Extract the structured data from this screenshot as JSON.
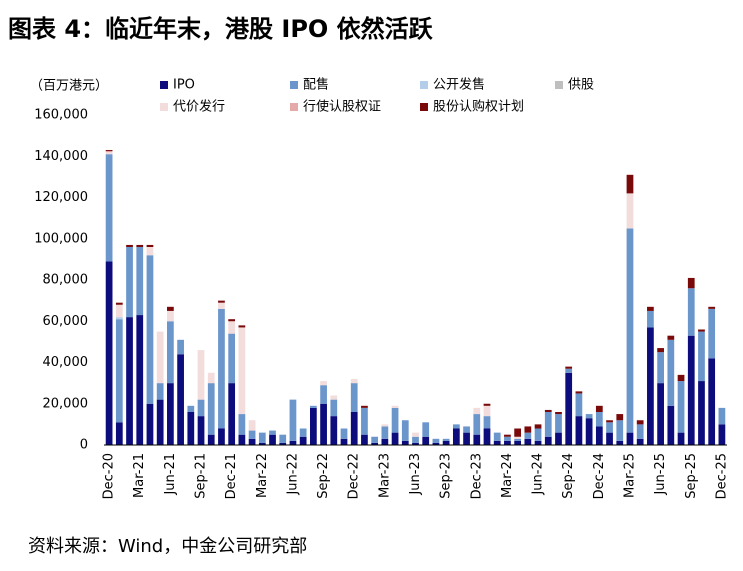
{
  "chart_data": {
    "type": "stacked_bar",
    "title": "图表 4：临近年末，港股 IPO 依然活跃",
    "y_label": "（百万港元）",
    "source": "资料来源：Wind，中金公司研究部",
    "categories": [
      "Dec-20",
      null,
      null,
      "Mar-21",
      null,
      null,
      "Jun-21",
      null,
      null,
      "Sep-21",
      null,
      null,
      "Dec-21",
      null,
      null,
      "Mar-22",
      null,
      null,
      "Jun-22",
      null,
      null,
      "Sep-22",
      null,
      null,
      "Dec-22",
      null,
      null,
      "Mar-23",
      null,
      null,
      "Jun-23",
      null,
      null,
      "Sep-23",
      null,
      null,
      "Dec-23",
      null,
      null,
      "Mar-24",
      null,
      null,
      "Jun-24",
      null,
      null,
      "Sep-24",
      null,
      null,
      "Dec-24",
      null,
      null,
      "Mar-25",
      null,
      null,
      "Jun-25",
      null,
      null,
      "Sep-25",
      null,
      null,
      "Dec-25"
    ],
    "series": [
      {
        "name": "IPO",
        "color": "#0c0c7c",
        "values": [
          89000,
          11000,
          62000,
          63000,
          20000,
          22000,
          30000,
          44000,
          16000,
          14000,
          5000,
          8000,
          30000,
          5000,
          3000,
          1000,
          5000,
          1000,
          2000,
          4000,
          18000,
          20000,
          14000,
          3000,
          16000,
          5000,
          1000,
          3000,
          6000,
          2000,
          1000,
          4000,
          1000,
          2000,
          8000,
          6000,
          5000,
          8000,
          2000,
          2000,
          2000,
          3000,
          2000,
          4000,
          6000,
          35000,
          14000,
          13000,
          9000,
          6000,
          2000,
          6000,
          3000,
          57000,
          30000,
          19000,
          6000,
          53000,
          31000,
          42000,
          10000
        ]
      },
      {
        "name": "配售",
        "color": "#6b96cc",
        "values": [
          52000,
          50000,
          34000,
          33000,
          72000,
          8000,
          30000,
          7000,
          3000,
          8000,
          25000,
          58000,
          24000,
          10000,
          4000,
          5000,
          2000,
          4000,
          20000,
          4000,
          1000,
          9000,
          8000,
          5000,
          14000,
          13000,
          3000,
          6000,
          12000,
          10000,
          3000,
          7000,
          2000,
          1000,
          2000,
          3000,
          10000,
          6000,
          4000,
          2000,
          1000,
          3000,
          6000,
          12000,
          9000,
          2000,
          11000,
          2000,
          7000,
          5000,
          10000,
          99000,
          7000,
          8000,
          15000,
          32000,
          25000,
          23000,
          24000,
          24000,
          8000
        ]
      },
      {
        "name": "公开发售",
        "color": "#b4cde9",
        "values": [
          0,
          1000,
          0,
          0,
          0,
          0,
          0,
          0,
          0,
          0,
          0,
          0,
          0,
          0,
          0,
          0,
          0,
          0,
          0,
          0,
          0,
          0,
          0,
          0,
          0,
          0,
          0,
          0,
          0,
          0,
          0,
          0,
          0,
          0,
          0,
          0,
          0,
          0,
          0,
          0,
          0,
          0,
          0,
          0,
          0,
          0,
          0,
          0,
          0,
          0,
          0,
          0,
          0,
          0,
          0,
          0,
          0,
          0,
          0,
          0,
          0
        ]
      },
      {
        "name": "供股",
        "color": "#bfbfbf",
        "values": [
          0,
          0,
          0,
          0,
          0,
          0,
          0,
          0,
          0,
          0,
          0,
          0,
          0,
          0,
          0,
          0,
          0,
          0,
          0,
          0,
          0,
          0,
          0,
          0,
          0,
          0,
          0,
          0,
          0,
          0,
          0,
          0,
          0,
          0,
          0,
          0,
          0,
          0,
          0,
          0,
          0,
          0,
          0,
          0,
          0,
          0,
          0,
          0,
          0,
          0,
          0,
          0,
          0,
          0,
          0,
          0,
          0,
          0,
          0,
          0,
          0
        ]
      },
      {
        "name": "代价发行",
        "color": "#f3dcdc",
        "values": [
          1000,
          6000,
          0,
          0,
          4000,
          25000,
          5000,
          0,
          0,
          24000,
          5000,
          3000,
          6000,
          42000,
          5000,
          0,
          0,
          0,
          0,
          0,
          0,
          2000,
          2000,
          0,
          2000,
          0,
          0,
          1000,
          1000,
          0,
          2000,
          0,
          0,
          0,
          0,
          0,
          3000,
          5000,
          0,
          0,
          1000,
          0,
          0,
          0,
          0,
          0,
          0,
          0,
          0,
          0,
          0,
          17000,
          0,
          0,
          0,
          0,
          0,
          0,
          0,
          0,
          0
        ]
      },
      {
        "name": "行使认股权证",
        "color": "#e5a9a9",
        "values": [
          500,
          0,
          0,
          0,
          0,
          0,
          0,
          0,
          0,
          0,
          0,
          0,
          0,
          0,
          0,
          0,
          0,
          0,
          0,
          0,
          0,
          0,
          0,
          0,
          0,
          0,
          0,
          0,
          0,
          0,
          0,
          0,
          0,
          0,
          0,
          0,
          0,
          0,
          0,
          0,
          0,
          0,
          0,
          0,
          0,
          0,
          0,
          0,
          0,
          0,
          0,
          0,
          0,
          0,
          0,
          0,
          0,
          0,
          0,
          0,
          0
        ]
      },
      {
        "name": "股份认购权计划",
        "color": "#7a0a0a",
        "values": [
          500,
          1000,
          1000,
          1000,
          1000,
          0,
          2000,
          0,
          0,
          0,
          0,
          1000,
          1000,
          1000,
          0,
          0,
          0,
          0,
          0,
          0,
          0,
          0,
          0,
          0,
          0,
          1000,
          0,
          0,
          0,
          0,
          0,
          0,
          0,
          0,
          0,
          0,
          0,
          1000,
          0,
          1000,
          4000,
          3000,
          2000,
          1000,
          1000,
          1000,
          1000,
          0,
          3000,
          1000,
          3000,
          9000,
          2000,
          2000,
          2000,
          2000,
          3000,
          5000,
          1000,
          1000,
          0
        ]
      }
    ],
    "ylim": [
      0,
      160000
    ],
    "yticks": [
      0,
      {
        "value": 20000,
        "label": "20,000"
      },
      {
        "value": 40000,
        "label": "40,000"
      },
      {
        "value": 60000,
        "label": "60,000"
      },
      {
        "value": 80000,
        "label": "80,000"
      },
      {
        "value": 100000,
        "label": "100,000"
      },
      {
        "value": 120000,
        "label": "120,000"
      },
      {
        "value": 140000,
        "label": "140,000"
      },
      {
        "value": 160000,
        "label": "160,000"
      }
    ],
    "grid": false
  }
}
